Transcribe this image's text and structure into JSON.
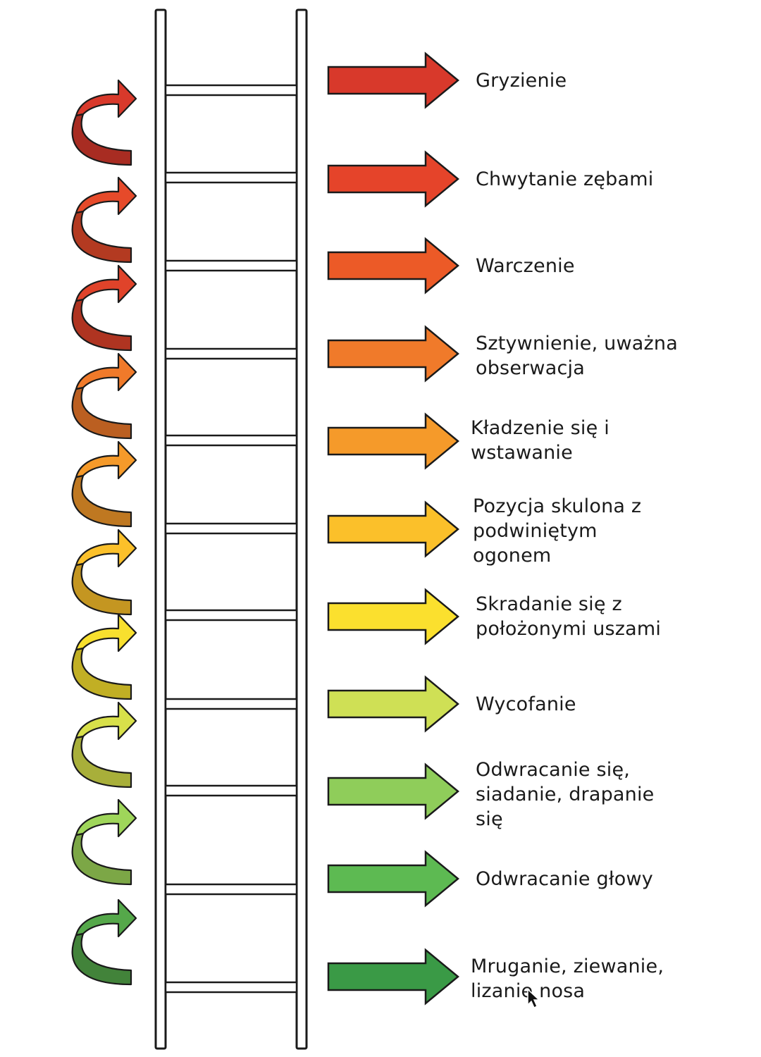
{
  "steps": [
    {
      "lines": [
        "Gryzienie"
      ],
      "color": "#d8392b"
    },
    {
      "lines": [
        "Chwytanie zębami"
      ],
      "color": "#e5442a"
    },
    {
      "lines": [
        "Warczenie"
      ],
      "color": "#ec5a27"
    },
    {
      "lines": [
        "Sztywnienie, uważna",
        "obserwacja"
      ],
      "color": "#f07a2a"
    },
    {
      "lines": [
        "Kładzenie się i",
        "wstawanie"
      ],
      "color": "#f59a2a"
    },
    {
      "lines": [
        "Pozycja skulona z",
        "podwiniętym",
        "ogonem"
      ],
      "color": "#fbc02a"
    },
    {
      "lines": [
        "Skradanie się z",
        "położonymi uszami"
      ],
      "color": "#fbe02e"
    },
    {
      "lines": [
        "Wycofanie"
      ],
      "color": "#cfe055"
    },
    {
      "lines": [
        "Odwracanie się,",
        "siadanie, drapanie",
        "się"
      ],
      "color": "#8fcd5a"
    },
    {
      "lines": [
        "Odwracanie głowy"
      ],
      "color": "#5dba52"
    },
    {
      "lines": [
        "Mruganie, ziewanie,",
        "lizanie nosa"
      ],
      "color": "#3a9a46"
    }
  ],
  "curl_colors": [
    "#d8392b",
    "#e64a2a",
    "#e0432a",
    "#f07a2a",
    "#f59a2a",
    "#fbc02a",
    "#f8e02e",
    "#d8e04a",
    "#9fd65a",
    "#55a84a"
  ],
  "outline_color": "#1a1a1a"
}
